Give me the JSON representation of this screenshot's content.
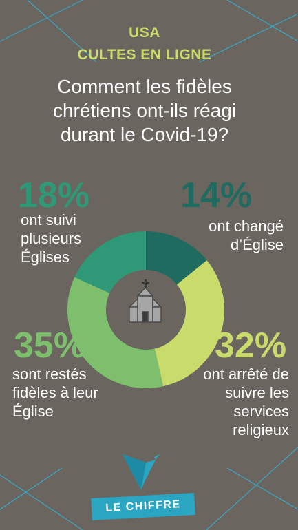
{
  "chart_data": {
    "type": "donut",
    "kicker": [
      "USA",
      "CULTES EN LIGNE"
    ],
    "title": "Comment les fidèles chrétiens ont-ils réagi durant le Covid-19?",
    "categories": [
      "ont changé d’Église",
      "ont arrêté de suivre les services religieux",
      "sont restés fidèles à leur Église",
      "ont suivi plusieurs Églises"
    ],
    "values": [
      14,
      32,
      35,
      18
    ],
    "value_labels": [
      "14%",
      "32%",
      "35%",
      "18%"
    ],
    "colors": [
      "#1f6b5f",
      "#c9dc6b",
      "#7dbf6d",
      "#2e9877"
    ],
    "footer": "LE CHIFFRE"
  }
}
